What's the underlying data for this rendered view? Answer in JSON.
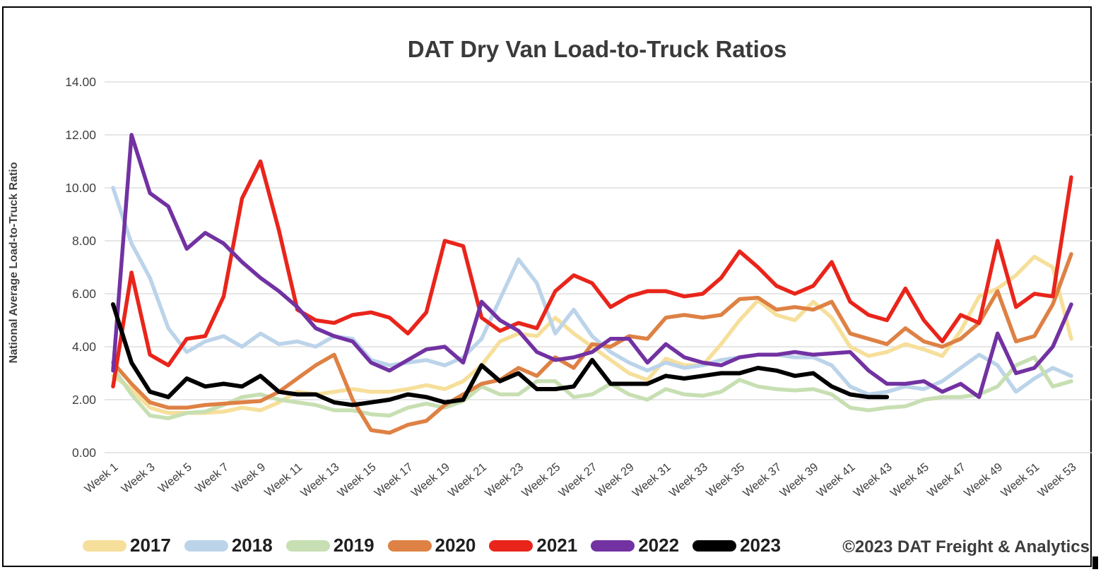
{
  "footer": {
    "copyright": "©2023 DAT Freight & Analytics"
  },
  "chart_data": {
    "type": "line",
    "title": "DAT Dry Van Load-to-Truck Ratios",
    "xlabel": "",
    "ylabel": "National Average Load-to-Truck Ratio",
    "ylim": [
      0,
      14
    ],
    "ytick_labels": [
      "0.00",
      "2.00",
      "4.00",
      "6.00",
      "8.00",
      "10.00",
      "12.00",
      "14.00"
    ],
    "xtick_every": 2,
    "grid": "horizontal",
    "legend_position": "bottom",
    "categories": [
      "Week 1",
      "Week 2",
      "Week 3",
      "Week 4",
      "Week 5",
      "Week 6",
      "Week 7",
      "Week 8",
      "Week 9",
      "Week 10",
      "Week 11",
      "Week 12",
      "Week 13",
      "Week 14",
      "Week 15",
      "Week 16",
      "Week 17",
      "Week 18",
      "Week 19",
      "Week 20",
      "Week 21",
      "Week 22",
      "Week 23",
      "Week 24",
      "Week 25",
      "Week 26",
      "Week 27",
      "Week 28",
      "Week 29",
      "Week 30",
      "Week 31",
      "Week 32",
      "Week 33",
      "Week 34",
      "Week 35",
      "Week 36",
      "Week 37",
      "Week 38",
      "Week 39",
      "Week 40",
      "Week 41",
      "Week 42",
      "Week 43",
      "Week 44",
      "Week 45",
      "Week 46",
      "Week 47",
      "Week 48",
      "Week 49",
      "Week 50",
      "Week 51",
      "Week 52",
      "Week 53"
    ],
    "series": [
      {
        "name": "2017",
        "color": "#F6DF9A",
        "values": [
          2.9,
          2.4,
          1.7,
          1.5,
          1.5,
          1.5,
          1.55,
          1.7,
          1.6,
          1.9,
          2.3,
          2.2,
          2.3,
          2.4,
          2.3,
          2.3,
          2.4,
          2.55,
          2.4,
          2.7,
          3.3,
          4.2,
          4.5,
          4.4,
          5.1,
          4.5,
          4.0,
          3.5,
          3.0,
          2.75,
          3.55,
          3.3,
          3.3,
          4.1,
          5.0,
          5.75,
          5.2,
          5.0,
          5.7,
          5.1,
          4.0,
          3.65,
          3.8,
          4.1,
          3.9,
          3.65,
          4.6,
          5.9,
          6.2,
          6.7,
          7.4,
          7.0,
          4.3
        ]
      },
      {
        "name": "2018",
        "color": "#BCD4EA",
        "values": [
          10.0,
          7.9,
          6.6,
          4.7,
          3.8,
          4.2,
          4.4,
          4.0,
          4.5,
          4.1,
          4.2,
          4.0,
          4.4,
          4.3,
          3.5,
          3.3,
          3.4,
          3.5,
          3.3,
          3.6,
          4.3,
          5.8,
          7.3,
          6.4,
          4.5,
          5.4,
          4.4,
          3.8,
          3.4,
          3.1,
          3.4,
          3.2,
          3.3,
          3.5,
          3.6,
          3.7,
          3.7,
          3.6,
          3.6,
          3.3,
          2.5,
          2.2,
          2.3,
          2.5,
          2.4,
          2.7,
          3.2,
          3.7,
          3.3,
          2.3,
          2.8,
          3.2,
          2.9
        ]
      },
      {
        "name": "2019",
        "color": "#C7DFB2",
        "values": [
          3.2,
          2.2,
          1.4,
          1.3,
          1.5,
          1.55,
          1.8,
          2.1,
          2.2,
          2.0,
          1.9,
          1.8,
          1.6,
          1.6,
          1.45,
          1.4,
          1.7,
          1.85,
          1.7,
          1.95,
          2.5,
          2.2,
          2.2,
          2.7,
          2.7,
          2.1,
          2.2,
          2.6,
          2.2,
          2.0,
          2.4,
          2.2,
          2.15,
          2.3,
          2.75,
          2.5,
          2.4,
          2.35,
          2.4,
          2.2,
          1.7,
          1.6,
          1.7,
          1.75,
          2.0,
          2.1,
          2.1,
          2.2,
          2.5,
          3.3,
          3.6,
          2.5,
          2.7
        ]
      },
      {
        "name": "2020",
        "color": "#DE8144",
        "values": [
          3.4,
          2.6,
          1.9,
          1.7,
          1.7,
          1.8,
          1.85,
          1.9,
          1.95,
          2.3,
          2.8,
          3.3,
          3.7,
          2.0,
          0.85,
          0.75,
          1.05,
          1.2,
          1.8,
          2.2,
          2.6,
          2.75,
          3.2,
          2.9,
          3.6,
          3.2,
          4.1,
          4.0,
          4.4,
          4.3,
          5.1,
          5.2,
          5.1,
          5.2,
          5.8,
          5.85,
          5.4,
          5.5,
          5.4,
          5.7,
          4.5,
          4.3,
          4.1,
          4.7,
          4.2,
          4.0,
          4.3,
          4.9,
          6.1,
          4.2,
          4.4,
          5.6,
          7.5
        ]
      },
      {
        "name": "2021",
        "color": "#E9251B",
        "values": [
          2.5,
          6.8,
          3.7,
          3.3,
          4.3,
          4.4,
          5.9,
          9.6,
          11.0,
          8.4,
          5.4,
          5.0,
          4.9,
          5.2,
          5.3,
          5.1,
          4.5,
          5.3,
          8.0,
          7.8,
          5.1,
          4.6,
          4.9,
          4.7,
          6.1,
          6.7,
          6.4,
          5.5,
          5.9,
          6.1,
          6.1,
          5.9,
          6.0,
          6.6,
          7.6,
          7.0,
          6.3,
          6.0,
          6.3,
          7.2,
          5.7,
          5.2,
          5.0,
          6.2,
          5.0,
          4.2,
          5.2,
          4.9,
          8.0,
          5.5,
          6.0,
          5.9,
          10.4
        ]
      },
      {
        "name": "2022",
        "color": "#7232A2",
        "values": [
          3.1,
          12.0,
          9.8,
          9.3,
          7.7,
          8.3,
          7.9,
          7.2,
          6.6,
          6.1,
          5.5,
          4.7,
          4.4,
          4.2,
          3.4,
          3.1,
          3.5,
          3.9,
          4.0,
          3.4,
          5.7,
          5.0,
          4.6,
          3.8,
          3.5,
          3.6,
          3.8,
          4.3,
          4.3,
          3.4,
          4.1,
          3.6,
          3.4,
          3.3,
          3.6,
          3.7,
          3.7,
          3.8,
          3.7,
          3.75,
          3.8,
          3.1,
          2.6,
          2.6,
          2.7,
          2.3,
          2.6,
          2.1,
          4.5,
          3.0,
          3.2,
          4.0,
          5.6
        ]
      },
      {
        "name": "2023",
        "color": "#000000",
        "values": [
          5.6,
          3.4,
          2.3,
          2.1,
          2.8,
          2.5,
          2.6,
          2.5,
          2.9,
          2.3,
          2.2,
          2.2,
          1.9,
          1.8,
          1.9,
          2.0,
          2.2,
          2.1,
          1.9,
          2.0,
          3.3,
          2.7,
          3.0,
          2.4,
          2.4,
          2.5,
          3.5,
          2.6,
          2.6,
          2.6,
          2.9,
          2.8,
          2.9,
          3.0,
          3.0,
          3.2,
          3.1,
          2.9,
          3.0,
          2.5,
          2.2,
          2.1,
          2.1,
          null,
          null,
          null,
          null,
          null,
          null,
          null,
          null,
          null,
          null
        ]
      }
    ]
  }
}
